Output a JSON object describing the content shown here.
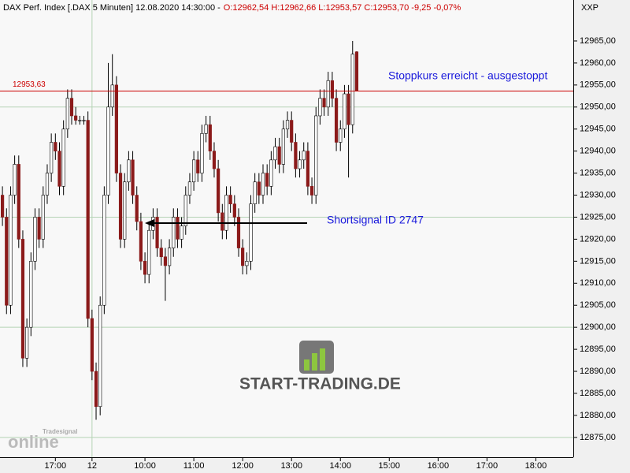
{
  "chart_data": {
    "type": "candlestick",
    "title": "DAX Perf. Index [.DAX  5 Minuten] 12.08.2020 14:30:00 -",
    "subtitle": "O:12962,54 H:12962,66 L:12953,57 C:12953,70 -9,25 -0,07%",
    "corner_label": "XXP",
    "open": [
      12930,
      12925,
      12905,
      12930,
      12937,
      12920,
      12893,
      12900,
      12915,
      12925,
      12920,
      12930,
      12935,
      12942,
      12940,
      12932,
      12945,
      12952,
      12948,
      12947,
      12947,
      12947,
      12902,
      12890,
      12882,
      12905,
      12930,
      12950,
      12955,
      12935,
      12920,
      12933,
      12938,
      12930,
      12924,
      12915,
      12912,
      12922,
      12925,
      12918,
      12916,
      12914,
      12918,
      12925,
      12920,
      12923,
      12930,
      12933,
      12938,
      12935,
      12944,
      12946,
      12940,
      12936,
      12926,
      12922,
      12930,
      12928,
      12925,
      12918,
      12914,
      12915,
      12928,
      12933,
      12930,
      12935,
      12932,
      12938,
      12941,
      12937,
      12945,
      12947,
      12942,
      12936,
      12938,
      12940,
      12932,
      12930,
      12948,
      12952,
      12950,
      12956,
      12952,
      12942,
      12945,
      12953,
      12946,
      12962.54
    ],
    "high": [
      12932,
      12927,
      12932,
      12939,
      12939,
      12922,
      12902,
      12917,
      12927,
      12927,
      12932,
      12937,
      12944,
      12944,
      12942,
      12947,
      12954,
      12954,
      12950,
      12948,
      12948,
      12949,
      12904,
      12892,
      12907,
      12932,
      12960,
      12962,
      12957,
      12937,
      12935,
      12940,
      12940,
      12932,
      12926,
      12917,
      12924,
      12927,
      12927,
      12920,
      12918,
      12920,
      12927,
      12927,
      12925,
      12932,
      12935,
      12940,
      12940,
      12946,
      12948,
      12948,
      12942,
      12938,
      12928,
      12932,
      12932,
      12930,
      12927,
      12920,
      12917,
      12930,
      12935,
      12935,
      12937,
      12937,
      12940,
      12943,
      12943,
      12947,
      12949,
      12949,
      12944,
      12940,
      12942,
      12942,
      12934,
      12950,
      12954,
      12954,
      12958,
      12958,
      12954,
      12947,
      12955,
      12955,
      12965,
      12962.66
    ],
    "low": [
      12923,
      12903,
      12903,
      12928,
      12918,
      12891,
      12891,
      12898,
      12913,
      12918,
      12918,
      12928,
      12933,
      12938,
      12930,
      12930,
      12943,
      12946,
      12946,
      12946,
      12946,
      12900,
      12888,
      12879,
      12880,
      12903,
      12928,
      12948,
      12933,
      12918,
      12918,
      12931,
      12928,
      12922,
      12913,
      12910,
      12910,
      12920,
      12916,
      12914,
      12906,
      12912,
      12916,
      12918,
      12918,
      12921,
      12928,
      12931,
      12933,
      12933,
      12942,
      12938,
      12934,
      12924,
      12920,
      12920,
      12926,
      12923,
      12916,
      12912,
      12912,
      12913,
      12926,
      12928,
      12928,
      12930,
      12930,
      12936,
      12935,
      12935,
      12943,
      12940,
      12934,
      12934,
      12936,
      12930,
      12928,
      12928,
      12946,
      12948,
      12948,
      12950,
      12940,
      12940,
      12943,
      12934,
      12944,
      12953.57
    ],
    "close": [
      12925,
      12905,
      12930,
      12937,
      12920,
      12893,
      12900,
      12915,
      12925,
      12920,
      12930,
      12935,
      12942,
      12940,
      12932,
      12945,
      12952,
      12948,
      12947,
      12947,
      12947,
      12902,
      12890,
      12882,
      12905,
      12930,
      12950,
      12955,
      12935,
      12920,
      12933,
      12938,
      12930,
      12924,
      12915,
      12912,
      12922,
      12925,
      12918,
      12916,
      12914,
      12918,
      12925,
      12920,
      12923,
      12930,
      12933,
      12938,
      12935,
      12944,
      12946,
      12940,
      12936,
      12926,
      12922,
      12930,
      12928,
      12925,
      12918,
      12914,
      12915,
      12928,
      12933,
      12930,
      12935,
      12932,
      12938,
      12941,
      12937,
      12945,
      12947,
      12942,
      12936,
      12938,
      12940,
      12932,
      12930,
      12948,
      12952,
      12950,
      12956,
      12952,
      12942,
      12945,
      12953,
      12946,
      12962,
      12953.7
    ],
    "up_color": "#ffffff",
    "down_color": "#8b1a1a",
    "ylim": [
      12870.5,
      12974.3
    ],
    "yticks": [
      {
        "value": 12875,
        "label": "12875,00"
      },
      {
        "value": 12880,
        "label": "12880,00"
      },
      {
        "value": 12885,
        "label": "12885,00"
      },
      {
        "value": 12890,
        "label": "12890,00"
      },
      {
        "value": 12895,
        "label": "12895,00"
      },
      {
        "value": 12900,
        "label": "12900,00"
      },
      {
        "value": 12905,
        "label": "12905,00"
      },
      {
        "value": 12910,
        "label": "12910,00"
      },
      {
        "value": 12915,
        "label": "12915,00"
      },
      {
        "value": 12920,
        "label": "12920,00"
      },
      {
        "value": 12925,
        "label": "12925,00"
      },
      {
        "value": 12930,
        "label": "12930,00"
      },
      {
        "value": 12935,
        "label": "12935,00"
      },
      {
        "value": 12940,
        "label": "12940,00"
      },
      {
        "value": 12945,
        "label": "12945,00"
      },
      {
        "value": 12950,
        "label": "12950,00"
      },
      {
        "value": 12955,
        "label": "12955,00"
      },
      {
        "value": 12960,
        "label": "12960,00"
      },
      {
        "value": 12965,
        "label": "12965,00"
      }
    ],
    "xlim": [
      -0.6,
      140.2
    ],
    "xticks": [
      {
        "value": 13,
        "label": "17:00"
      },
      {
        "value": 22,
        "label": "12"
      },
      {
        "value": 35,
        "label": "10:00"
      },
      {
        "value": 47,
        "label": "11:00"
      },
      {
        "value": 59,
        "label": "12:00"
      },
      {
        "value": 71,
        "label": "13:00"
      },
      {
        "value": 83,
        "label": "14:00"
      },
      {
        "value": 95,
        "label": "15:00"
      },
      {
        "value": 107,
        "label": "16:00"
      },
      {
        "value": 119,
        "label": "17:00"
      },
      {
        "value": 131,
        "label": "18:00"
      }
    ],
    "stop_line": {
      "value": 12953.63,
      "label": "12953,63",
      "color": "#cc0000"
    },
    "annotations": [
      "Stoppkurs erreicht - ausgestoppt",
      "Shortsignal ID 2747"
    ],
    "watermarks": [
      "START-TRADING.DE",
      "Tradesignal",
      "online"
    ]
  }
}
